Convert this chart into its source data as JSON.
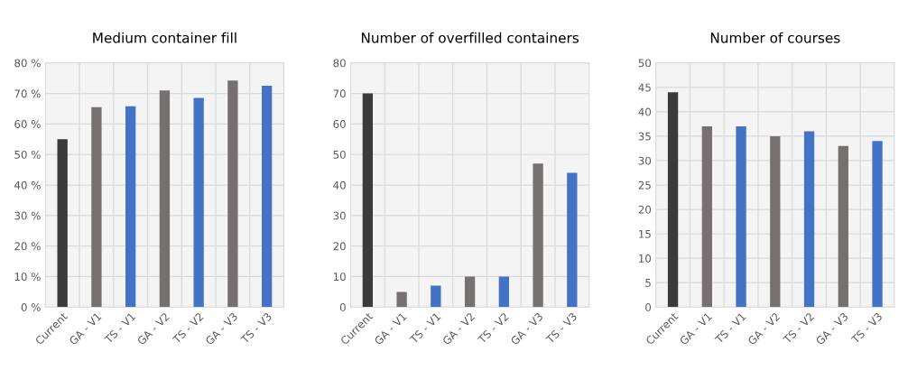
{
  "chart_data": [
    {
      "type": "bar",
      "title": "Medium container fill",
      "categories": [
        "Current",
        "GA - V1",
        "TS - V1",
        "GA - V2",
        "TS - V2",
        "GA - V3",
        "TS - V3"
      ],
      "values": [
        55,
        65.5,
        65.8,
        71,
        68.5,
        74.2,
        72.5
      ],
      "colors": [
        "#3b3b3b",
        "#767171",
        "#4472c4",
        "#767171",
        "#4472c4",
        "#767171",
        "#4472c4"
      ],
      "ylim": [
        0,
        80
      ],
      "yticks": [
        {
          "value": 0,
          "label": "0 %"
        },
        {
          "value": 10,
          "label": "10 %"
        },
        {
          "value": 20,
          "label": "20 %"
        },
        {
          "value": 30,
          "label": "30 %"
        },
        {
          "value": 40,
          "label": "40 %"
        },
        {
          "value": 50,
          "label": "50 %"
        },
        {
          "value": 60,
          "label": "60 %"
        },
        {
          "value": 70,
          "label": "70 %"
        },
        {
          "value": 80,
          "label": "80 %"
        }
      ],
      "grid": true
    },
    {
      "type": "bar",
      "title": "Number of overfilled containers",
      "categories": [
        "Current",
        "GA - V1",
        "TS - V1",
        "GA - V2",
        "TS - V2",
        "GA - V3",
        "TS - V3"
      ],
      "values": [
        70,
        5,
        7,
        10,
        10,
        47,
        44
      ],
      "colors": [
        "#3b3b3b",
        "#767171",
        "#4472c4",
        "#767171",
        "#4472c4",
        "#767171",
        "#4472c4"
      ],
      "ylim": [
        0,
        80
      ],
      "yticks": [
        0,
        10,
        20,
        30,
        40,
        50,
        60,
        70,
        80
      ],
      "grid": true
    },
    {
      "type": "bar",
      "title": "Number of courses",
      "categories": [
        "Current",
        "GA - V1",
        "TS - V1",
        "GA - V2",
        "TS - V2",
        "GA - V3",
        "TS - V3"
      ],
      "values": [
        44,
        37,
        37,
        35,
        36,
        33,
        34
      ],
      "colors": [
        "#3b3b3b",
        "#767171",
        "#4472c4",
        "#767171",
        "#4472c4",
        "#767171",
        "#4472c4"
      ],
      "ylim": [
        0,
        50
      ],
      "yticks": [
        0,
        5,
        10,
        15,
        20,
        25,
        30,
        35,
        40,
        45,
        50
      ],
      "grid": true
    }
  ]
}
